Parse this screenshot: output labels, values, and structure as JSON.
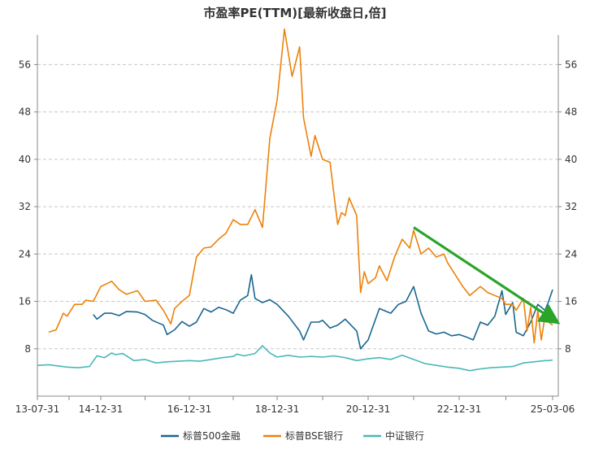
{
  "chart_data": {
    "type": "line",
    "title": "市盈率PE(TTM)[最新收盘日,倍]",
    "xlabel": "",
    "ylabel": "",
    "x_ticks": [
      "13-07-31",
      "14-12-31",
      "16-12-31",
      "18-12-31",
      "20-12-31",
      "22-12-31",
      "25-03-06"
    ],
    "ylim": [
      0,
      61
    ],
    "yticks": [
      8,
      16,
      24,
      32,
      40,
      48,
      56
    ],
    "grid": "horizontal-dashed",
    "legend": "bottom",
    "series": [
      {
        "name": "标普500金融",
        "color": "#1a6690",
        "points": [
          [
            "2014-10-31",
            13.8
          ],
          [
            "2014-11-30",
            13.0
          ],
          [
            "2015-01-31",
            14.0
          ],
          [
            "2015-03-31",
            14.0
          ],
          [
            "2015-05-31",
            13.6
          ],
          [
            "2015-07-31",
            14.3
          ],
          [
            "2015-10-31",
            14.2
          ],
          [
            "2015-12-31",
            13.8
          ],
          [
            "2016-02-29",
            12.8
          ],
          [
            "2016-05-31",
            12.0
          ],
          [
            "2016-06-30",
            10.4
          ],
          [
            "2016-08-31",
            11.2
          ],
          [
            "2016-10-31",
            12.6
          ],
          [
            "2016-12-31",
            11.8
          ],
          [
            "2017-02-28",
            12.5
          ],
          [
            "2017-04-30",
            14.8
          ],
          [
            "2017-06-30",
            14.2
          ],
          [
            "2017-08-31",
            15.0
          ],
          [
            "2017-10-31",
            14.6
          ],
          [
            "2017-12-31",
            14.0
          ],
          [
            "2018-02-28",
            16.2
          ],
          [
            "2018-04-30",
            17.0
          ],
          [
            "2018-05-31",
            20.5
          ],
          [
            "2018-06-30",
            16.5
          ],
          [
            "2018-08-31",
            15.8
          ],
          [
            "2018-10-31",
            16.3
          ],
          [
            "2018-12-31",
            15.5
          ],
          [
            "2019-03-31",
            13.5
          ],
          [
            "2019-06-30",
            11.0
          ],
          [
            "2019-07-31",
            9.5
          ],
          [
            "2019-09-30",
            12.5
          ],
          [
            "2019-11-30",
            12.5
          ],
          [
            "2019-12-31",
            12.8
          ],
          [
            "2020-02-29",
            11.5
          ],
          [
            "2020-04-30",
            12.0
          ],
          [
            "2020-06-30",
            13.0
          ],
          [
            "2020-09-30",
            11.0
          ],
          [
            "2020-10-31",
            8.0
          ],
          [
            "2020-12-31",
            9.5
          ],
          [
            "2021-03-31",
            14.8
          ],
          [
            "2021-06-30",
            14.0
          ],
          [
            "2021-08-31",
            15.5
          ],
          [
            "2021-10-31",
            16.0
          ],
          [
            "2021-12-31",
            18.5
          ],
          [
            "2022-02-28",
            14.0
          ],
          [
            "2022-04-30",
            11.0
          ],
          [
            "2022-06-30",
            10.5
          ],
          [
            "2022-08-31",
            10.8
          ],
          [
            "2022-10-31",
            10.2
          ],
          [
            "2022-12-31",
            10.4
          ],
          [
            "2023-02-28",
            10.0
          ],
          [
            "2023-04-30",
            9.5
          ],
          [
            "2023-06-30",
            12.5
          ],
          [
            "2023-08-31",
            12.0
          ],
          [
            "2023-10-31",
            13.5
          ],
          [
            "2023-12-31",
            17.8
          ],
          [
            "2024-01-31",
            13.8
          ],
          [
            "2024-03-31",
            15.8
          ],
          [
            "2024-04-30",
            10.8
          ],
          [
            "2024-06-30",
            10.2
          ],
          [
            "2024-08-31",
            12.5
          ],
          [
            "2024-10-31",
            15.5
          ],
          [
            "2024-12-31",
            14.5
          ],
          [
            "2025-01-31",
            16.0
          ],
          [
            "2025-03-06",
            18.0
          ]
        ]
      },
      {
        "name": "标普BSE银行",
        "color": "#ec820a",
        "points": [
          [
            "2013-10-31",
            10.8
          ],
          [
            "2013-12-31",
            11.2
          ],
          [
            "2014-02-28",
            14.0
          ],
          [
            "2014-03-31",
            13.5
          ],
          [
            "2014-05-31",
            15.5
          ],
          [
            "2014-07-31",
            15.5
          ],
          [
            "2014-08-31",
            16.2
          ],
          [
            "2014-10-31",
            16.0
          ],
          [
            "2014-12-31",
            18.5
          ],
          [
            "2015-03-31",
            19.4
          ],
          [
            "2015-05-31",
            18.0
          ],
          [
            "2015-07-31",
            17.2
          ],
          [
            "2015-10-31",
            17.8
          ],
          [
            "2015-12-31",
            16.0
          ],
          [
            "2016-03-31",
            16.2
          ],
          [
            "2016-05-31",
            14.5
          ],
          [
            "2016-07-31",
            12.2
          ],
          [
            "2016-08-31",
            14.8
          ],
          [
            "2016-10-31",
            16.0
          ],
          [
            "2016-12-31",
            17.0
          ],
          [
            "2017-02-28",
            23.5
          ],
          [
            "2017-04-30",
            25.0
          ],
          [
            "2017-06-30",
            25.2
          ],
          [
            "2017-08-31",
            26.5
          ],
          [
            "2017-10-31",
            27.5
          ],
          [
            "2017-12-31",
            29.8
          ],
          [
            "2018-02-28",
            29.0
          ],
          [
            "2018-04-30",
            29.0
          ],
          [
            "2018-06-30",
            31.5
          ],
          [
            "2018-08-31",
            28.5
          ],
          [
            "2018-10-31",
            43.5
          ],
          [
            "2018-12-31",
            50.0
          ],
          [
            "2019-02-28",
            62.0
          ],
          [
            "2019-04-30",
            54.0
          ],
          [
            "2019-06-30",
            59.0
          ],
          [
            "2019-07-31",
            47.0
          ],
          [
            "2019-09-30",
            40.5
          ],
          [
            "2019-10-31",
            44.0
          ],
          [
            "2019-12-31",
            40.0
          ],
          [
            "2020-02-29",
            39.5
          ],
          [
            "2020-04-30",
            29.0
          ],
          [
            "2020-05-31",
            31.0
          ],
          [
            "2020-06-30",
            30.5
          ],
          [
            "2020-07-31",
            33.5
          ],
          [
            "2020-09-30",
            30.5
          ],
          [
            "2020-10-31",
            17.5
          ],
          [
            "2020-11-30",
            21.0
          ],
          [
            "2020-12-31",
            19.0
          ],
          [
            "2021-02-28",
            20.0
          ],
          [
            "2021-03-31",
            22.0
          ],
          [
            "2021-05-31",
            19.5
          ],
          [
            "2021-07-31",
            23.5
          ],
          [
            "2021-09-30",
            26.5
          ],
          [
            "2021-11-30",
            25.0
          ],
          [
            "2021-12-31",
            28.0
          ],
          [
            "2022-02-28",
            24.0
          ],
          [
            "2022-04-30",
            25.0
          ],
          [
            "2022-06-30",
            23.5
          ],
          [
            "2022-08-31",
            24.0
          ],
          [
            "2022-09-30",
            22.5
          ],
          [
            "2022-11-30",
            20.5
          ],
          [
            "2023-01-31",
            18.5
          ],
          [
            "2023-03-31",
            17.0
          ],
          [
            "2023-06-30",
            18.5
          ],
          [
            "2023-08-31",
            17.5
          ],
          [
            "2023-10-31",
            17.0
          ],
          [
            "2023-12-31",
            16.5
          ],
          [
            "2024-01-31",
            15.5
          ],
          [
            "2024-03-31",
            15.5
          ],
          [
            "2024-04-30",
            14.5
          ],
          [
            "2024-06-30",
            16.5
          ],
          [
            "2024-07-31",
            11.0
          ],
          [
            "2024-08-31",
            15.0
          ],
          [
            "2024-09-30",
            9.0
          ],
          [
            "2024-10-31",
            14.5
          ],
          [
            "2024-11-30",
            9.5
          ],
          [
            "2024-12-31",
            13.5
          ],
          [
            "2025-01-31",
            12.5
          ],
          [
            "2025-03-06",
            12.0
          ]
        ]
      },
      {
        "name": "中证银行",
        "color": "#4ab8b6",
        "points": [
          [
            "2013-07-31",
            5.2
          ],
          [
            "2013-10-31",
            5.3
          ],
          [
            "2014-03-31",
            4.9
          ],
          [
            "2014-06-30",
            4.8
          ],
          [
            "2014-09-30",
            5.0
          ],
          [
            "2014-11-30",
            6.8
          ],
          [
            "2015-01-31",
            6.5
          ],
          [
            "2015-03-31",
            7.3
          ],
          [
            "2015-04-30",
            7.0
          ],
          [
            "2015-06-30",
            7.2
          ],
          [
            "2015-09-30",
            6.0
          ],
          [
            "2015-12-31",
            6.2
          ],
          [
            "2016-03-31",
            5.6
          ],
          [
            "2016-06-30",
            5.8
          ],
          [
            "2016-09-30",
            5.9
          ],
          [
            "2016-12-31",
            6.0
          ],
          [
            "2017-03-31",
            5.9
          ],
          [
            "2017-06-30",
            6.2
          ],
          [
            "2017-09-30",
            6.5
          ],
          [
            "2017-12-31",
            6.7
          ],
          [
            "2018-01-31",
            7.1
          ],
          [
            "2018-03-31",
            6.8
          ],
          [
            "2018-06-30",
            7.2
          ],
          [
            "2018-08-31",
            8.5
          ],
          [
            "2018-10-31",
            7.3
          ],
          [
            "2018-12-31",
            6.6
          ],
          [
            "2019-03-31",
            6.9
          ],
          [
            "2019-06-30",
            6.6
          ],
          [
            "2019-09-30",
            6.7
          ],
          [
            "2019-12-31",
            6.6
          ],
          [
            "2020-03-31",
            6.8
          ],
          [
            "2020-06-30",
            6.5
          ],
          [
            "2020-09-30",
            6.0
          ],
          [
            "2020-12-31",
            6.3
          ],
          [
            "2021-03-31",
            6.5
          ],
          [
            "2021-06-30",
            6.2
          ],
          [
            "2021-09-30",
            6.9
          ],
          [
            "2021-12-31",
            6.2
          ],
          [
            "2022-03-31",
            5.5
          ],
          [
            "2022-06-30",
            5.2
          ],
          [
            "2022-09-30",
            4.9
          ],
          [
            "2022-12-31",
            4.7
          ],
          [
            "2023-03-31",
            4.3
          ],
          [
            "2023-06-30",
            4.6
          ],
          [
            "2023-09-30",
            4.8
          ],
          [
            "2023-12-31",
            4.9
          ],
          [
            "2024-03-31",
            5.0
          ],
          [
            "2024-06-30",
            5.6
          ],
          [
            "2024-09-30",
            5.8
          ],
          [
            "2024-12-31",
            6.0
          ],
          [
            "2025-01-31",
            6.0
          ],
          [
            "2025-03-06",
            6.1
          ]
        ]
      }
    ],
    "annotations": [
      {
        "type": "trend-arrow",
        "color": "#2aa52a",
        "from": [
          "2021-12-31",
          28.5
        ],
        "to": [
          "2025-03-06",
          12.5
        ]
      }
    ]
  }
}
